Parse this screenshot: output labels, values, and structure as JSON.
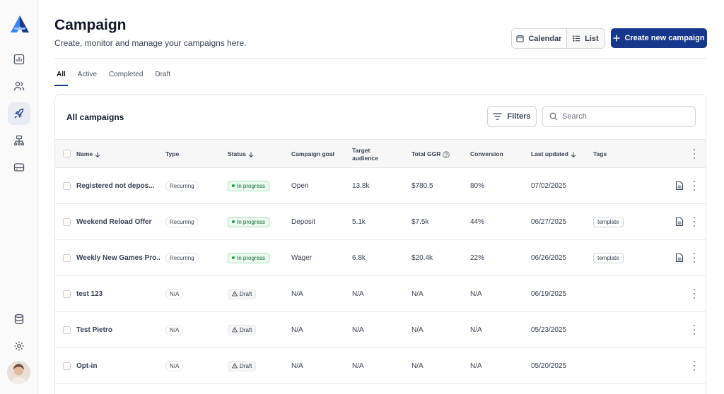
{
  "sidebar": {
    "logo": "brand-logo",
    "nav_items": [
      "chart-icon",
      "users-icon",
      "rocket-icon",
      "sitemap-icon",
      "inbox-icon"
    ],
    "bottom_items": [
      "database-icon",
      "gear-icon"
    ],
    "active_item": "rocket-icon"
  },
  "header": {
    "title": "Campaign",
    "subtitle": "Create, monitor and manage your campaigns here.",
    "view_calendar": "Calendar",
    "view_list": "List",
    "create_button": "Create new campaign"
  },
  "tabs": [
    "All",
    "Active",
    "Completed",
    "Draft"
  ],
  "active_tab": "All",
  "card": {
    "title": "All campaigns",
    "filters_label": "Filters",
    "search_placeholder": "Search"
  },
  "columns": {
    "name": "Name",
    "type": "Type",
    "status": "Status",
    "goal": "Campaign goal",
    "target_line1": "Target",
    "target_line2": "audience",
    "ggr": "Total GGR",
    "conversion": "Conversion",
    "updated": "Last updated",
    "tags": "Tags"
  },
  "rows": [
    {
      "name": "Registered not depos...",
      "type": "Recurring",
      "status": "In progress",
      "goal": "Open",
      "target": "13.8k",
      "ggr": "$780.5",
      "conversion": "80%",
      "updated": "07/02/2025",
      "tag": ""
    },
    {
      "name": "Weekend Reload Offer",
      "type": "Recurring",
      "status": "In progress",
      "goal": "Deposit",
      "target": "5.1k",
      "ggr": "$7.5k",
      "conversion": "44%",
      "updated": "06/27/2025",
      "tag": "template"
    },
    {
      "name": "Weekly New Games Pro...",
      "type": "Recurring",
      "status": "In progress",
      "goal": "Wager",
      "target": "6.8k",
      "ggr": "$20.4k",
      "conversion": "22%",
      "updated": "06/26/2025",
      "tag": "template"
    },
    {
      "name": "test 123",
      "type": "N/A",
      "status": "Draft",
      "goal": "N/A",
      "target": "N/A",
      "ggr": "N/A",
      "conversion": "N/A",
      "updated": "06/19/2025",
      "tag": ""
    },
    {
      "name": "Test Pietro",
      "type": "N/A",
      "status": "Draft",
      "goal": "N/A",
      "target": "N/A",
      "ggr": "N/A",
      "conversion": "N/A",
      "updated": "05/23/2025",
      "tag": ""
    },
    {
      "name": "Opt-in",
      "type": "N/A",
      "status": "Draft",
      "goal": "N/A",
      "target": "N/A",
      "ggr": "N/A",
      "conversion": "N/A",
      "updated": "05/20/2025",
      "tag": ""
    }
  ],
  "colors": {
    "primary": "#17378b",
    "success_bg": "#ecfaf0",
    "success_text": "#166534",
    "border": "#e5e7eb"
  }
}
